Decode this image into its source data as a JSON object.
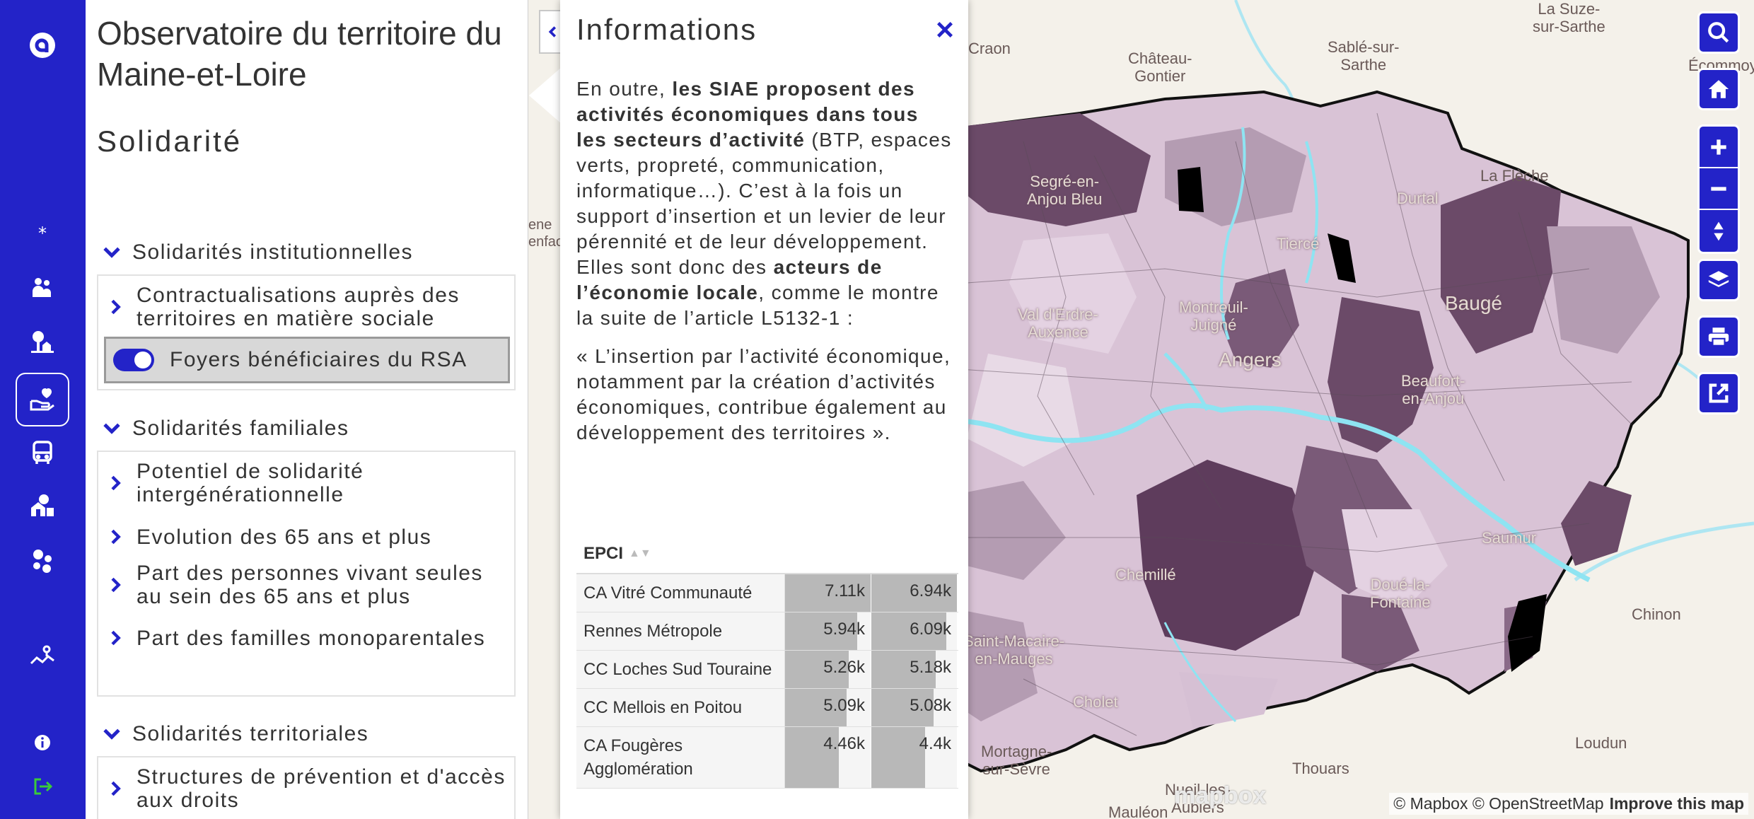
{
  "sidebar": {
    "title": "Observatoire du territoire du Maine-et-Loire",
    "subtitle": "Solidarité",
    "sections": [
      {
        "label": "Solidarités institutionnelles",
        "items": [
          {
            "label": "Contractualisations auprès des territoires en matière sociale"
          },
          {
            "label": "Foyers bénéficiaires du RSA",
            "toggle": true
          }
        ]
      },
      {
        "label": "Solidarités familiales",
        "items": [
          {
            "label": "Potentiel de solidarité intergénérationnelle"
          },
          {
            "label": "Evolution des 65 ans et plus"
          },
          {
            "label": "Part des personnes vivant seules au sein des 65 ans et plus"
          },
          {
            "label": "Part des familles monoparentales"
          }
        ]
      },
      {
        "label": "Solidarités territoriales",
        "items": [
          {
            "label": "Structures de prévention et d'accès aux droits"
          }
        ]
      }
    ]
  },
  "popup": {
    "title": "Informations",
    "close_label": "×",
    "para1_a": "En outre, ",
    "para1_b": "les SIAE proposent des activités économiques dans tous les secteurs d’activité",
    "para1_c": " (BTP, espaces verts, propreté, communication, informatique…). C’est à la fois un support d’insertion et un levier de leur pérennité et de leur développement. Elles sont donc des ",
    "para1_d": "acteurs de l’économie locale",
    "para1_e": ", comme le montre la suite de l’article L5132-1 :",
    "para2": "« L’insertion par l’activité économique, notamment par la création d’activités économiques, contribue également au développement des territoires ».",
    "table": {
      "header": "EPCI",
      "rows": [
        {
          "name": "CA Vitré Communauté",
          "v1": "7.11k",
          "v2": "6.94k",
          "f1": 1.0,
          "f2": 1.0
        },
        {
          "name": "Rennes Métropole",
          "v1": "5.94k",
          "v2": "6.09k",
          "f1": 0.84,
          "f2": 0.88
        },
        {
          "name": "CC Loches Sud Touraine",
          "v1": "5.26k",
          "v2": "5.18k",
          "f1": 0.74,
          "f2": 0.75
        },
        {
          "name": "CC Mellois en Poitou",
          "v1": "5.09k",
          "v2": "5.08k",
          "f1": 0.72,
          "f2": 0.73
        },
        {
          "name": "CA Fougères Agglomération",
          "v1": "4.46k",
          "v2": "4.4k",
          "f1": 0.63,
          "f2": 0.63
        }
      ]
    }
  },
  "map": {
    "places": {
      "craon": "Craon",
      "chateau": "Château-\nGontier",
      "sable": "Sablé-sur-\nSarthe",
      "suze": "La Suze-\nsur-Sarthe",
      "ecommoy": "Écommoy",
      "fleche": "La Flèche",
      "segre": "Segré-en-\nAnjou Bleu",
      "durtal": "Durtal",
      "tierce": "Tiercé",
      "valerdre": "Val d'Erdre-\nAuxence",
      "montreuil": "Montreuil-\nJuigné",
      "angers": "Angers",
      "bauge": "Baugé",
      "beaufort": "Beaufort-\nen-Anjou",
      "chemille": "Chemillé",
      "saumur": "Saumur",
      "doue": "Doué-la-\nFontaine",
      "chinon": "Chinon",
      "macaire": "Saint-Macaire-\nen-Mauges",
      "cholet": "Cholet",
      "mortagne": "Mortagne-\nsur-Sèvre",
      "nueil": "Nueil-les-\nAubiers",
      "mauleon": "Mauléon",
      "thouars": "Thouars",
      "loudun": "Loudun",
      "renfao": "enfao",
      "rene": "ene"
    },
    "logo": "mapbox",
    "attribution": "© Mapbox © OpenStreetMap",
    "improve": "Improve this map"
  }
}
